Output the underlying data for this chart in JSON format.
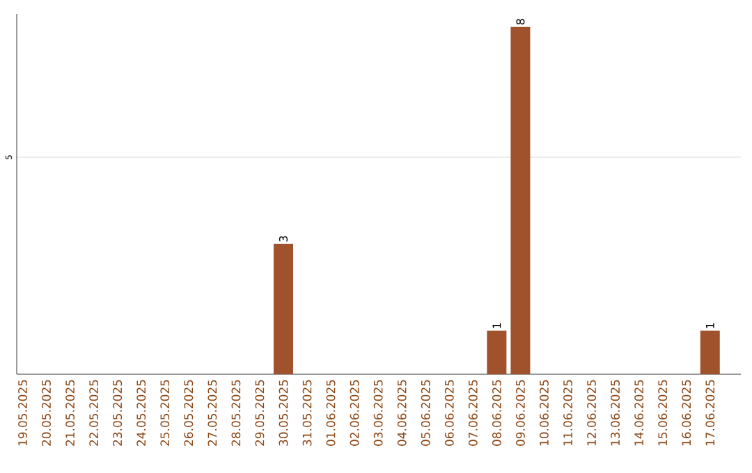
{
  "chart_data": {
    "type": "bar",
    "categories": [
      "19.05.2025",
      "20.05.2025",
      "21.05.2025",
      "22.05.2025",
      "23.05.2025",
      "24.05.2025",
      "25.05.2025",
      "26.05.2025",
      "27.05.2025",
      "28.05.2025",
      "29.05.2025",
      "30.05.2025",
      "31.05.2025",
      "01.06.2025",
      "02.06.2025",
      "03.06.2025",
      "04.06.2025",
      "05.06.2025",
      "06.06.2025",
      "07.06.2025",
      "08.06.2025",
      "09.06.2025",
      "10.06.2025",
      "11.06.2025",
      "12.06.2025",
      "13.06.2025",
      "14.06.2025",
      "15.06.2025",
      "16.06.2025",
      "17.06.2025"
    ],
    "values": [
      0,
      0,
      0,
      0,
      0,
      0,
      0,
      0,
      0,
      0,
      0,
      3,
      0,
      0,
      0,
      0,
      0,
      0,
      0,
      0,
      1,
      8,
      0,
      0,
      0,
      0,
      0,
      0,
      0,
      1
    ],
    "value_labels": [
      null,
      null,
      null,
      null,
      null,
      null,
      null,
      null,
      null,
      null,
      null,
      "3",
      null,
      null,
      null,
      null,
      null,
      null,
      null,
      null,
      "1",
      "8",
      null,
      null,
      null,
      null,
      null,
      null,
      null,
      "1"
    ],
    "color": "#a0522d",
    "ylim": [
      0,
      8.3
    ],
    "yticks": [
      5
    ],
    "grid": "y"
  }
}
